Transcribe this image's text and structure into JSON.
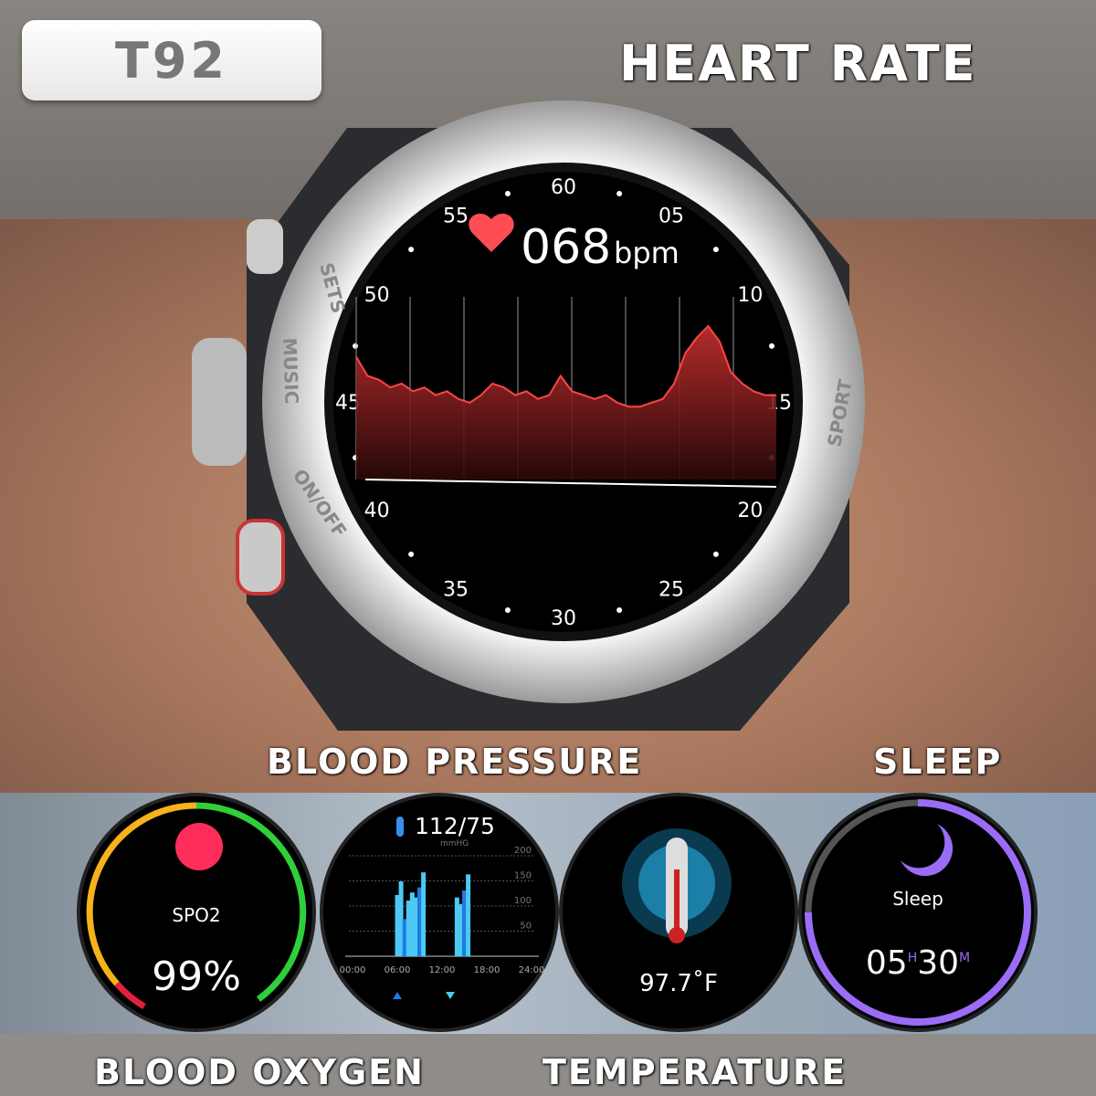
{
  "brand": {
    "model": "T92"
  },
  "labels": {
    "heart_rate": "HEART RATE",
    "blood_pressure": "BLOOD PRESSURE",
    "sleep": "SLEEP",
    "blood_oxygen": "BLOOD OXYGEN",
    "temperature": "TEMPERATURE"
  },
  "watch": {
    "bezel_text": {
      "sets": "SETS",
      "music": "MUSIC",
      "onoff": "ON/OFF",
      "sport": "SPORT"
    },
    "tick_labels": [
      "60",
      "05",
      "10",
      "15",
      "20",
      "25",
      "30",
      "35",
      "40",
      "45",
      "50",
      "55"
    ],
    "heart_rate": {
      "value": "068",
      "unit": "bpm",
      "trace": [
        62,
        57,
        56,
        54,
        55,
        53,
        54,
        52,
        53,
        51,
        50,
        52,
        55,
        54,
        52,
        53,
        51,
        52,
        57,
        53,
        52,
        51,
        52,
        50,
        49,
        49,
        50,
        51,
        55,
        63,
        67,
        70,
        66,
        58,
        55,
        53,
        52,
        52
      ]
    },
    "colors": {
      "trace": "#ff4545",
      "heart": "#ff4d55"
    }
  },
  "spo2": {
    "label": "SPO2",
    "value": "99%",
    "colors": {
      "ring_yellow": "#f5b21b",
      "ring_green": "#2fcf3a",
      "ring_red": "#e0213a",
      "drop": "#ff2d5a"
    }
  },
  "blood_pressure": {
    "value": "112/75",
    "unit": "mmHG",
    "y_ticks": [
      "200",
      "150",
      "100",
      "50"
    ],
    "x_ticks": [
      "00:00",
      "06:00",
      "12:00",
      "18:00",
      "24:00"
    ],
    "bars": [
      {
        "h": 6,
        "v": 122
      },
      {
        "h": 6.5,
        "v": 149
      },
      {
        "h": 7,
        "v": 74,
        "dark": true
      },
      {
        "h": 7.5,
        "v": 111
      },
      {
        "h": 8,
        "v": 127
      },
      {
        "h": 8.5,
        "v": 117
      },
      {
        "h": 9,
        "v": 137,
        "dark": true
      },
      {
        "h": 9.5,
        "v": 167
      },
      {
        "h": 14,
        "v": 117
      },
      {
        "h": 14.5,
        "v": 104
      },
      {
        "h": 15,
        "v": 131,
        "dark": true
      },
      {
        "h": 15.5,
        "v": 163
      }
    ],
    "colors": {
      "light": "#4cc9f5",
      "dark": "#1f7be0"
    }
  },
  "temperature": {
    "value": "97.7˚F"
  },
  "sleep": {
    "label": "Sleep",
    "hours": "05",
    "h_unit": "H",
    "minutes": "30",
    "m_unit": "M",
    "progress": 0.75,
    "color": "#9b6cf5"
  }
}
